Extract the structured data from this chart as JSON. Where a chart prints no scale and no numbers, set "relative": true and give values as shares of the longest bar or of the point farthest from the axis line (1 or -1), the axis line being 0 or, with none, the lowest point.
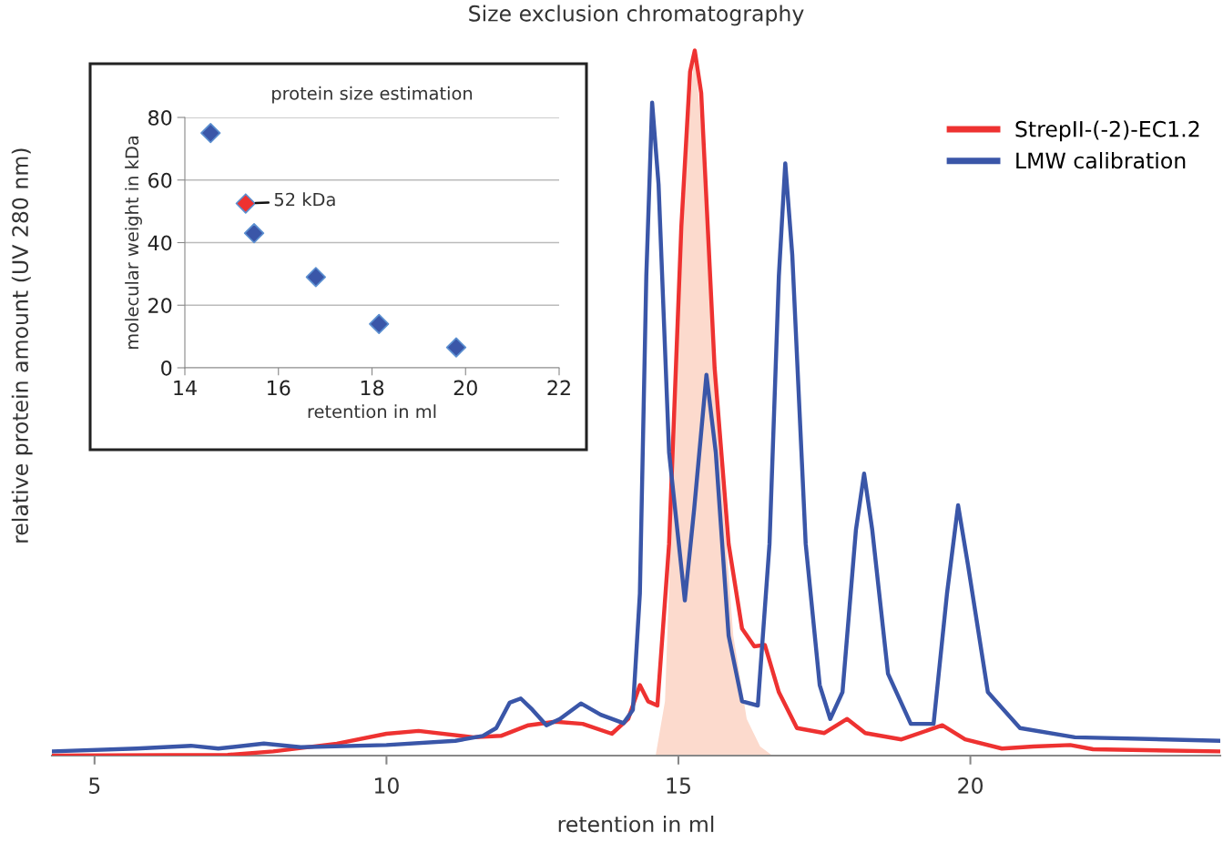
{
  "chart_data": [
    {
      "type": "line",
      "title": "Size exclusion chromatography",
      "xlabel": "retention in ml",
      "ylabel": "relative protein amount (UV 280 nm)",
      "relative": true,
      "xlim": [
        4.27,
        24.28
      ],
      "xticks": [
        5,
        10,
        15,
        20
      ],
      "legend": "top right",
      "grid": false,
      "series": [
        {
          "type": "area",
          "color": "#fcdacd",
          "x": [
            14.61,
            14.77,
            14.92,
            15.08,
            15.28,
            15.47,
            15.7,
            15.94,
            16.17,
            16.4,
            16.61
          ],
          "values": [
            0,
            0.077,
            0.43,
            0.81,
            1.0,
            0.81,
            0.43,
            0.17,
            0.052,
            0.013,
            0
          ]
        },
        {
          "name": "StrepII-(-2)-EC1.2",
          "color": "#ee3231",
          "x": [
            4.27,
            7.28,
            8.06,
            9.15,
            10.0,
            10.55,
            11.49,
            11.96,
            12.43,
            12.89,
            13.36,
            13.86,
            14.14,
            14.34,
            14.48,
            14.64,
            14.84,
            15.05,
            15.2,
            15.28,
            15.39,
            15.62,
            15.86,
            16.09,
            16.3,
            16.48,
            16.72,
            17.03,
            17.5,
            17.89,
            18.2,
            18.82,
            19.52,
            19.91,
            20.54,
            21.08,
            21.71,
            22.1,
            24.28
          ],
          "values": [
            0.0,
            0.001,
            0.006,
            0.017,
            0.031,
            0.035,
            0.026,
            0.028,
            0.043,
            0.048,
            0.045,
            0.031,
            0.052,
            0.1,
            0.077,
            0.071,
            0.3,
            0.75,
            0.97,
            1.0,
            0.94,
            0.55,
            0.3,
            0.18,
            0.155,
            0.157,
            0.09,
            0.039,
            0.032,
            0.052,
            0.032,
            0.023,
            0.043,
            0.023,
            0.01,
            0.013,
            0.015,
            0.009,
            0.006
          ]
        },
        {
          "name": "LMW calibration",
          "color": "#3a56a8",
          "x": [
            4.27,
            5.72,
            6.65,
            7.12,
            7.9,
            8.53,
            10.0,
            11.18,
            11.65,
            11.88,
            12.11,
            12.3,
            12.5,
            12.74,
            12.97,
            13.33,
            13.67,
            14.06,
            14.22,
            14.34,
            14.45,
            14.55,
            14.66,
            14.84,
            15.11,
            15.27,
            15.48,
            15.64,
            15.86,
            16.09,
            16.36,
            16.56,
            16.72,
            16.83,
            16.95,
            17.18,
            17.42,
            17.6,
            17.81,
            18.04,
            18.18,
            18.32,
            18.59,
            18.98,
            19.37,
            19.6,
            19.79,
            19.96,
            20.3,
            20.85,
            21.79,
            24.28
          ],
          "values": [
            0.006,
            0.01,
            0.014,
            0.01,
            0.017,
            0.012,
            0.015,
            0.021,
            0.028,
            0.039,
            0.075,
            0.081,
            0.065,
            0.043,
            0.052,
            0.074,
            0.058,
            0.046,
            0.065,
            0.23,
            0.68,
            0.926,
            0.81,
            0.43,
            0.22,
            0.35,
            0.54,
            0.43,
            0.17,
            0.077,
            0.071,
            0.3,
            0.68,
            0.84,
            0.71,
            0.3,
            0.1,
            0.052,
            0.09,
            0.32,
            0.4,
            0.32,
            0.116,
            0.045,
            0.045,
            0.23,
            0.355,
            0.27,
            0.09,
            0.039,
            0.026,
            0.021
          ]
        }
      ]
    },
    {
      "type": "scatter",
      "title": "protein size estimation",
      "xlabel": "retention in ml",
      "ylabel": "molecular weight in kDa",
      "xlim": [
        14,
        22
      ],
      "ylim": [
        0,
        80
      ],
      "xticks": [
        14,
        16,
        18,
        20,
        22
      ],
      "yticks": [
        0,
        20,
        40,
        60,
        80
      ],
      "grid": "y",
      "marker": "diamond",
      "x": [
        14.55,
        15.3,
        15.48,
        16.8,
        18.15,
        19.8
      ],
      "values": [
        75,
        52.5,
        43,
        29,
        14,
        6.5
      ],
      "colors": [
        "#3a56a8",
        "#ee3231",
        "#3a56a8",
        "#3a56a8",
        "#3a56a8",
        "#3a56a8"
      ],
      "annotations": [
        {
          "text": "52 kDa",
          "x": 15.3,
          "y": 52.5
        }
      ]
    }
  ]
}
